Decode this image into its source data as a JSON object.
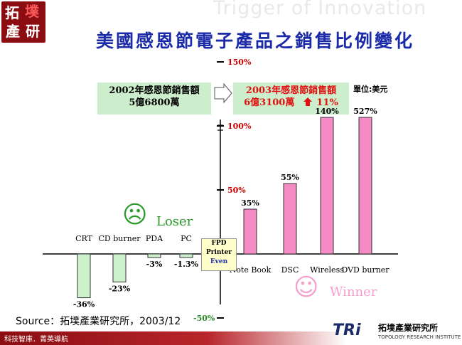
{
  "header": {
    "logo_chars": [
      "拓",
      "墣",
      "產",
      "研"
    ],
    "tagline": "Trigger of Innovation",
    "title": "美國感恩節電子產品之銷售比例變化"
  },
  "boxes": {
    "box2002_line1": "2002年感恩節銷售額",
    "box2002_line2": "5億6800萬",
    "box2003_line1": "2003年感恩節銷售額",
    "box2003_line2": "6億3100萬",
    "box2003_growth": "11%",
    "unit": "單位:美元"
  },
  "faces": {
    "loser_label": "Loser",
    "winner_label": "Winner",
    "sad_glyph": "☹",
    "happy_glyph": "☺"
  },
  "center_box": {
    "line1": "FPD",
    "line2": "Printer",
    "line3": "Even"
  },
  "footer": {
    "source": "Source：拓墣產業研究所，2003/12",
    "bar_text": "科技智庫．菁英導航",
    "tri_logo": "TRi",
    "tri_name": "拓墣產業研究所",
    "tri_sub": "TOPOLOGY RESEARCH INSTITUTE"
  },
  "colors": {
    "loser_bar": "#ccf2cc",
    "winner_bar": "#f58ac4",
    "title": "#1a2aa8",
    "axis_label": "#cc0000"
  },
  "chart_data": {
    "type": "bar",
    "title": "美國感恩節電子產品之銷售比例變化",
    "unit": "單位:美元",
    "categories": [
      "CRT",
      "CD burner",
      "PDA",
      "PC",
      "Note Book",
      "DSC",
      "Wireless",
      "DVD burner"
    ],
    "values": [
      -36,
      -23,
      -3,
      -1.3,
      35,
      55,
      140,
      527
    ],
    "value_labels": [
      "-36%",
      "-23%",
      "-3%",
      "-1.3%",
      "35%",
      "55%",
      "140%",
      "527%"
    ],
    "y_ticks": [
      -50,
      50,
      100,
      150
    ],
    "y_tick_labels": [
      "-50%",
      "50%",
      "100%",
      "150%"
    ],
    "axis_break": true,
    "groups": [
      {
        "name": "Loser",
        "categories": [
          "CRT",
          "CD burner",
          "PDA",
          "PC"
        ]
      },
      {
        "name": "Winner",
        "categories": [
          "Note Book",
          "DSC",
          "Wireless",
          "DVD burner"
        ]
      }
    ],
    "grid": false
  }
}
